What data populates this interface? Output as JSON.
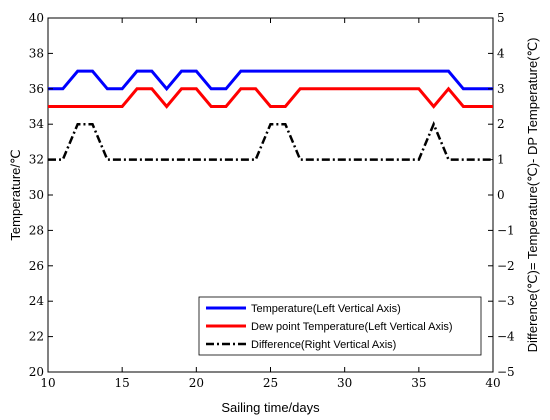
{
  "chart_data": {
    "type": "line",
    "xlabel": "Sailing time/days",
    "ylabel_left": "Temperature/℃",
    "ylabel_right": "Difference(℃)= Temperature(℃)- DP Temperature(℃)",
    "xlim": [
      10,
      40
    ],
    "ylim_left": [
      20,
      40
    ],
    "ylim_right": [
      -5,
      5
    ],
    "x_ticks": [
      "10",
      "15",
      "20",
      "25",
      "30",
      "35",
      "40"
    ],
    "y_left_ticks": [
      "20",
      "22",
      "24",
      "26",
      "28",
      "30",
      "32",
      "34",
      "36",
      "38",
      "40"
    ],
    "y_right_ticks": [
      "−5",
      "−4",
      "−3",
      "−2",
      "−1",
      "0",
      "1",
      "2",
      "3",
      "4",
      "5"
    ],
    "grid": false,
    "legend_position": "bottom-right",
    "series": [
      {
        "name": "Temperature(Left Vertical Axis)",
        "axis": "left",
        "color": "#0000ff",
        "style": "solid",
        "points": [
          [
            10,
            36
          ],
          [
            11,
            36
          ],
          [
            12,
            37
          ],
          [
            13,
            37
          ],
          [
            14,
            36
          ],
          [
            15,
            36
          ],
          [
            16,
            37
          ],
          [
            17,
            37
          ],
          [
            18,
            36
          ],
          [
            19,
            37
          ],
          [
            20,
            37
          ],
          [
            21,
            36
          ],
          [
            22,
            36
          ],
          [
            23,
            37
          ],
          [
            24,
            37
          ],
          [
            25,
            37
          ],
          [
            26,
            37
          ],
          [
            27,
            37
          ],
          [
            28,
            37
          ],
          [
            29,
            37
          ],
          [
            30,
            37
          ],
          [
            31,
            37
          ],
          [
            32,
            37
          ],
          [
            33,
            37
          ],
          [
            34,
            37
          ],
          [
            35,
            37
          ],
          [
            36,
            37
          ],
          [
            37,
            37
          ],
          [
            38,
            36
          ],
          [
            39,
            36
          ],
          [
            40,
            36
          ]
        ]
      },
      {
        "name": "Dew point Temperature(Left Vertical Axis)",
        "axis": "left",
        "color": "#ff0000",
        "style": "solid",
        "points": [
          [
            10,
            35
          ],
          [
            11,
            35
          ],
          [
            12,
            35
          ],
          [
            13,
            35
          ],
          [
            14,
            35
          ],
          [
            15,
            35
          ],
          [
            16,
            36
          ],
          [
            17,
            36
          ],
          [
            18,
            35
          ],
          [
            19,
            36
          ],
          [
            20,
            36
          ],
          [
            21,
            35
          ],
          [
            22,
            35
          ],
          [
            23,
            36
          ],
          [
            24,
            36
          ],
          [
            25,
            35
          ],
          [
            26,
            35
          ],
          [
            27,
            36
          ],
          [
            28,
            36
          ],
          [
            29,
            36
          ],
          [
            30,
            36
          ],
          [
            31,
            36
          ],
          [
            32,
            36
          ],
          [
            33,
            36
          ],
          [
            34,
            36
          ],
          [
            35,
            36
          ],
          [
            36,
            35
          ],
          [
            37,
            36
          ],
          [
            38,
            35
          ],
          [
            39,
            35
          ],
          [
            40,
            35
          ]
        ]
      },
      {
        "name": "Difference(Right Vertical Axis)",
        "axis": "right",
        "color": "#000000",
        "style": "dash-dot",
        "points": [
          [
            10,
            1
          ],
          [
            11,
            1
          ],
          [
            12,
            2
          ],
          [
            13,
            2
          ],
          [
            14,
            1
          ],
          [
            15,
            1
          ],
          [
            16,
            1
          ],
          [
            17,
            1
          ],
          [
            18,
            1
          ],
          [
            19,
            1
          ],
          [
            20,
            1
          ],
          [
            21,
            1
          ],
          [
            22,
            1
          ],
          [
            23,
            1
          ],
          [
            24,
            1
          ],
          [
            25,
            2
          ],
          [
            26,
            2
          ],
          [
            27,
            1
          ],
          [
            28,
            1
          ],
          [
            29,
            1
          ],
          [
            30,
            1
          ],
          [
            31,
            1
          ],
          [
            32,
            1
          ],
          [
            33,
            1
          ],
          [
            34,
            1
          ],
          [
            35,
            1
          ],
          [
            36,
            2
          ],
          [
            37,
            1
          ],
          [
            38,
            1
          ],
          [
            39,
            1
          ],
          [
            40,
            1
          ]
        ]
      }
    ]
  }
}
